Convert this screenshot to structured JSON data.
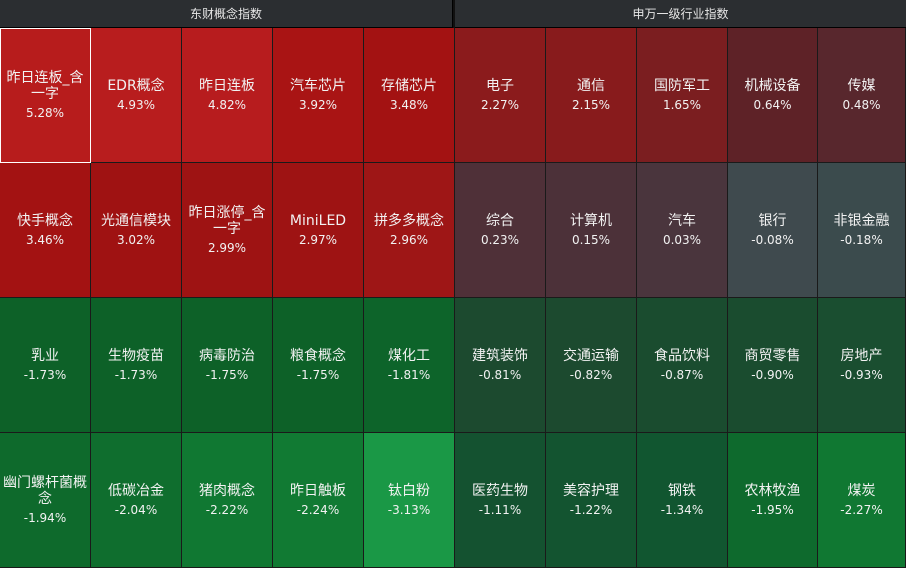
{
  "left_panel": {
    "title": "东财概念指数",
    "tiles": [
      {
        "name": "昨日连板_含一字",
        "pct": "5.28%",
        "color": "#b71c1c",
        "selected": true
      },
      {
        "name": "EDR概念",
        "pct": "4.93%",
        "color": "#b81d1e"
      },
      {
        "name": "昨日连板",
        "pct": "4.82%",
        "color": "#b71c1e"
      },
      {
        "name": "汽车芯片",
        "pct": "3.92%",
        "color": "#a91414"
      },
      {
        "name": "存储芯片",
        "pct": "3.48%",
        "color": "#a31212"
      },
      {
        "name": "快手概念",
        "pct": "3.46%",
        "color": "#a31212"
      },
      {
        "name": "光通信模块",
        "pct": "3.02%",
        "color": "#9f1212"
      },
      {
        "name": "昨日涨停_含一字",
        "pct": "2.99%",
        "color": "#9e1313"
      },
      {
        "name": "MiniLED",
        "pct": "2.97%",
        "color": "#9e1313"
      },
      {
        "name": "拼多多概念",
        "pct": "2.96%",
        "color": "#9e1616"
      },
      {
        "name": "乳业",
        "pct": "-1.73%",
        "color": "#0d6128"
      },
      {
        "name": "生物疫苗",
        "pct": "-1.73%",
        "color": "#0d6128"
      },
      {
        "name": "病毒防治",
        "pct": "-1.75%",
        "color": "#0d6128"
      },
      {
        "name": "粮食概念",
        "pct": "-1.75%",
        "color": "#0d6128"
      },
      {
        "name": "煤化工",
        "pct": "-1.81%",
        "color": "#0d642a"
      },
      {
        "name": "幽门螺杆菌概念",
        "pct": "-1.94%",
        "color": "#0e6a2c"
      },
      {
        "name": "低碳冶金",
        "pct": "-2.04%",
        "color": "#0f6e2e"
      },
      {
        "name": "猪肉概念",
        "pct": "-2.22%",
        "color": "#107832"
      },
      {
        "name": "昨日触板",
        "pct": "-2.24%",
        "color": "#117a33"
      },
      {
        "name": "钛白粉",
        "pct": "-3.13%",
        "color": "#1a9846"
      }
    ]
  },
  "right_panel": {
    "title": "申万一级行业指数",
    "tiles": [
      {
        "name": "电子",
        "pct": "2.27%",
        "color": "#8b1b1c"
      },
      {
        "name": "通信",
        "pct": "2.15%",
        "color": "#881b1c"
      },
      {
        "name": "国防军工",
        "pct": "1.65%",
        "color": "#7b1e20"
      },
      {
        "name": "机械设备",
        "pct": "0.64%",
        "color": "#5e2227"
      },
      {
        "name": "传媒",
        "pct": "0.48%",
        "color": "#58272d"
      },
      {
        "name": "综合",
        "pct": "0.23%",
        "color": "#4f3038"
      },
      {
        "name": "计算机",
        "pct": "0.15%",
        "color": "#4c3139"
      },
      {
        "name": "汽车",
        "pct": "0.03%",
        "color": "#4a353d"
      },
      {
        "name": "银行",
        "pct": "-0.08%",
        "color": "#3f4a4e"
      },
      {
        "name": "非银金融",
        "pct": "-0.18%",
        "color": "#3b4b4d"
      },
      {
        "name": "建筑装饰",
        "pct": "-0.81%",
        "color": "#1c4a2f"
      },
      {
        "name": "交通运输",
        "pct": "-0.82%",
        "color": "#1c4a2f"
      },
      {
        "name": "食品饮料",
        "pct": "-0.87%",
        "color": "#1a4c2f"
      },
      {
        "name": "商贸零售",
        "pct": "-0.90%",
        "color": "#1a4c2f"
      },
      {
        "name": "房地产",
        "pct": "-0.93%",
        "color": "#1a4e30"
      },
      {
        "name": "医药生物",
        "pct": "-1.11%",
        "color": "#145230"
      },
      {
        "name": "美容护理",
        "pct": "-1.22%",
        "color": "#135430"
      },
      {
        "name": "钢铁",
        "pct": "-1.34%",
        "color": "#115630"
      },
      {
        "name": "农林牧渔",
        "pct": "-1.95%",
        "color": "#0e6a2d"
      },
      {
        "name": "煤炭",
        "pct": "-2.27%",
        "color": "#107832"
      }
    ]
  }
}
